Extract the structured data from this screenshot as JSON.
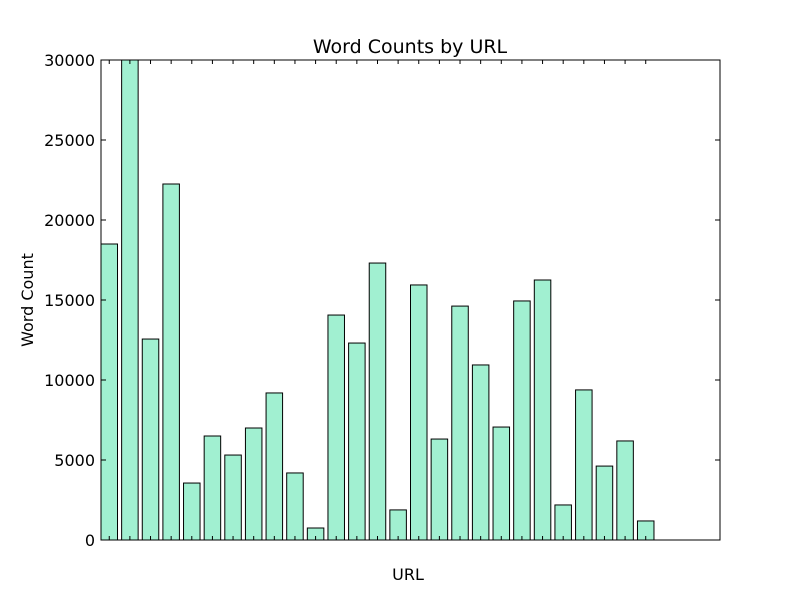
{
  "chart_data": {
    "type": "bar",
    "title": "Word Counts by URL",
    "x_label": "URL",
    "y_label": "Word Count",
    "categories": [
      null,
      null,
      null,
      null,
      null,
      null,
      null,
      null,
      null,
      null,
      null,
      null,
      null,
      null,
      null,
      null,
      null,
      null,
      null,
      null,
      null,
      null,
      null,
      null,
      null,
      null,
      null
    ],
    "values": [
      18500,
      30000,
      12560,
      22250,
      3560,
      6500,
      5310,
      7000,
      9190,
      4190,
      750,
      14060,
      12310,
      17310,
      1880,
      15940,
      6310,
      14620,
      10940,
      7060,
      14940,
      16250,
      2190,
      9380,
      4620,
      6190,
      1190
    ],
    "color": "#a1f0d1",
    "ylim": [
      0,
      30000
    ],
    "yticks": [
      0,
      5000,
      10000,
      15000,
      20000,
      25000,
      30000
    ],
    "grid": false
  }
}
